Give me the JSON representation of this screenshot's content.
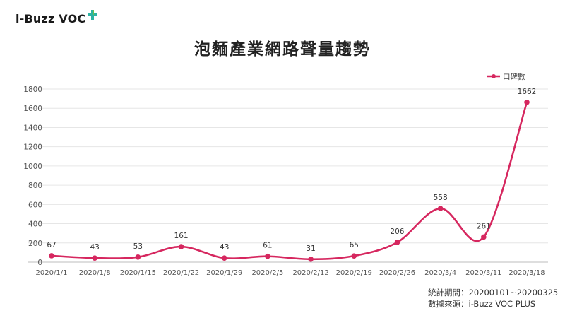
{
  "brand": {
    "name": "i-Buzz VOC"
  },
  "chart_data": {
    "type": "line",
    "title": "泡麵產業網路聲量趨勢",
    "categories": [
      "2020/1/1",
      "2020/1/8",
      "2020/1/15",
      "2020/1/22",
      "2020/1/29",
      "2020/2/5",
      "2020/2/12",
      "2020/2/19",
      "2020/2/26",
      "2020/3/4",
      "2020/3/11",
      "2020/3/18"
    ],
    "series": [
      {
        "name": "口碑數",
        "values": [
          67,
          43,
          53,
          161,
          43,
          61,
          31,
          65,
          206,
          558,
          261,
          1662
        ]
      }
    ],
    "yticks": [
      0,
      200,
      400,
      600,
      800,
      1000,
      1200,
      1400,
      1600,
      1800
    ],
    "ylim": [
      0,
      1800
    ],
    "xlabel": "",
    "ylabel": "",
    "grid": true,
    "legend": "top-right",
    "smooth": true,
    "color": "#d6275f"
  },
  "footer": {
    "period_label": "統計期間：",
    "period_value": "20200101~20200325",
    "source_label": "數據來源：",
    "source_value": "i-Buzz VOC PLUS"
  }
}
